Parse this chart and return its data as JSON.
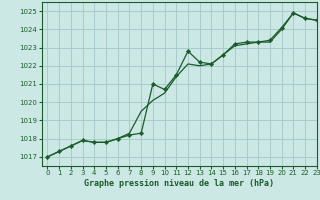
{
  "title": "Graphe pression niveau de la mer (hPa)",
  "bg_color": "#cce8e4",
  "grid_color": "#aacccc",
  "line_color": "#1a5c2a",
  "xlim": [
    -0.5,
    23
  ],
  "ylim": [
    1016.5,
    1025.5
  ],
  "yticks": [
    1017,
    1018,
    1019,
    1020,
    1021,
    1022,
    1023,
    1024,
    1025
  ],
  "xticks": [
    0,
    1,
    2,
    3,
    4,
    5,
    6,
    7,
    8,
    9,
    10,
    11,
    12,
    13,
    14,
    15,
    16,
    17,
    18,
    19,
    20,
    21,
    22,
    23
  ],
  "series1_x": [
    0,
    1,
    2,
    3,
    4,
    5,
    6,
    7,
    8,
    9,
    10,
    11,
    12,
    13,
    14,
    15,
    16,
    17,
    18,
    19,
    20,
    21,
    22,
    23
  ],
  "series1_y": [
    1017.0,
    1017.3,
    1017.6,
    1017.9,
    1017.8,
    1017.8,
    1018.0,
    1018.3,
    1019.5,
    1020.1,
    1020.5,
    1021.4,
    1022.1,
    1022.0,
    1022.1,
    1022.6,
    1023.1,
    1023.2,
    1023.3,
    1023.3,
    1024.0,
    1024.9,
    1024.6,
    1024.5
  ],
  "series2_x": [
    0,
    1,
    2,
    3,
    4,
    5,
    6,
    7,
    8,
    9,
    10,
    11,
    12,
    13,
    14,
    15,
    16,
    17,
    18,
    19,
    20,
    21,
    22,
    23
  ],
  "series2_y": [
    1017.0,
    1017.3,
    1017.6,
    1017.9,
    1017.8,
    1017.8,
    1018.0,
    1018.2,
    1018.3,
    1021.0,
    1020.7,
    1021.5,
    1022.8,
    1022.2,
    1022.1,
    1022.6,
    1023.2,
    1023.3,
    1023.3,
    1023.4,
    1024.1,
    1024.9,
    1024.6,
    1024.5
  ]
}
